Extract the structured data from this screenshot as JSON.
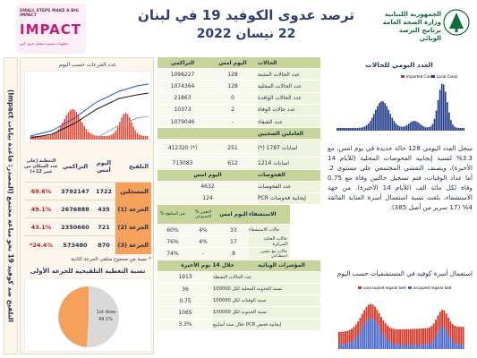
{
  "header": {
    "title": "ترصد عدوى الكوفيد 19 في لبنان",
    "date": "22 نيسان 2022",
    "moph_name": "الجمهورية اللبنانية\nوزارة الصحة العامة\nبرنامج الترصد الوبائي",
    "impact_line1": "SMALL STEPS MAKE A BIG IMPACT",
    "impact_line2": "IMPACT",
    "impact_line3": "خطوات صغيرة بتعمل فرق كبير"
  },
  "side_band": "التلقيح ضد كوفيد 19 نحو مناعة مجتمع (المصدر: قاعدة بيانات Impact)",
  "vaccination": {
    "chart_caption": "عدد الجرعات حسب اليوم",
    "headers": [
      "التلقيح",
      "اليوم أمس",
      "التراكمي",
      "التغطية (على عدد السكان من عمر 12+)"
    ],
    "rows": [
      {
        "label": "المسجلين",
        "yesterday": "1722",
        "cumulative": "3792147",
        "coverage": "69.6%"
      },
      {
        "label": "الجرعة (1)",
        "yesterday": "435",
        "cumulative": "2676888",
        "coverage": "49.1%"
      },
      {
        "label": "الجرعة (2)",
        "yesterday": "721",
        "cumulative": "2350660",
        "coverage": "43.1%"
      },
      {
        "label": "الجرعة (3)",
        "yesterday": "870",
        "cumulative": "573480",
        "coverage": "24.4%*"
      }
    ],
    "note": "* نسبة من مجموع متلقي الجرعة الثانية",
    "coverage_title": "نسبة التغطية التلقيحية للجرعة الأولى",
    "pie_label_1": "1st dose",
    "pie_value_1": "49.1%"
  },
  "cases_table": {
    "header": {
      "label": "الحالات",
      "yesterday": "اليوم امس",
      "cumulative": "التراكمي"
    },
    "rows": [
      {
        "label": "عدد الحالات المثبتة",
        "yesterday": "128",
        "cumulative": "1096227"
      },
      {
        "label": "عدد الحالات المحلية",
        "yesterday": "128",
        "cumulative": "1074364"
      },
      {
        "label": "عدد الحالات الوافدة",
        "yesterday": "0",
        "cumulative": "21863"
      },
      {
        "label": "عدد حالات الوفاة",
        "yesterday": "2",
        "cumulative": "10373"
      },
      {
        "label": "عدد الشفاء",
        "yesterday": "-",
        "cumulative": "1079046"
      }
    ],
    "health_workers_header": "العاملين الصحيين",
    "health_rows": [
      {
        "label": "اصابات 1787 (*)",
        "yesterday": "251",
        "cumulative": "412320 (*)"
      },
      {
        "label": "اصابات 1214",
        "yesterday": "612",
        "cumulative": "713083"
      }
    ],
    "tests_header": {
      "label": "الفحوصات",
      "yesterday": "اليوم امس"
    },
    "tests_rows": [
      {
        "label": "عدد الفحوصات",
        "value": "4632"
      },
      {
        "label": "إيجابية فحوصات PCR",
        "value": "124"
      }
    ],
    "hosp_header": {
      "label": "الاستشفاء",
      "yesterday": "اليوم امس",
      "change": "% التغيير الاسبوعي",
      "vent": "% غير المتلقح"
    },
    "hosp_rows": [
      {
        "label": "حالات الاستشفاء",
        "yesterday": "33",
        "change": "4%",
        "vent": "60%"
      },
      {
        "label": "حالات العناية المركزة",
        "yesterday": "17",
        "change": "4%",
        "vent": "76%"
      },
      {
        "label": "حالات مع تنفس اصطناعي",
        "yesterday": "8",
        "change": "-",
        "vent": "74%"
      }
    ],
    "indicators_header": {
      "label": "المؤشرات الوبائية",
      "value": "خلال 14 يوم الأخيرة"
    },
    "indicator_rows": [
      {
        "label": "عدد الحالات النشطة",
        "value": "1913"
      },
      {
        "label": "نسبة الحدوث المحلية لكل 100000",
        "value": "36"
      },
      {
        "label": "نسبة الوفيات لكل 100000",
        "value": "0.75"
      },
      {
        "label": "نسبة الحدوث لكل 100000",
        "value": "1065"
      },
      {
        "label": "إيجابية فحص PCR خلال ستة أسابيع",
        "value": "3.3%"
      }
    ]
  },
  "daily_cases": {
    "title": "العدد اليومي للحالات",
    "legend_imported": "Imported Cases",
    "legend_local": "Local Cases"
  },
  "summary_text": "سجل العدد اليومي 128 حالة جديدة في يوم امس، مع 3.3% لنسبة إيجابية الفحوصات المحلية (للأيام 14 الأخيرة)، ويصنف التفشي المجتمعي على مستوى 2. أما عداد الوفيات، فتم تسجيل حالتين وفاة مع 0.75 وفاة لكل مائة الف (للأيام 14 الأخيرة). من جهة الاستشفاء، بلغت نسبة استعمال أسرة العناية الفائقة 4% (17 سرير من أصل 385).",
  "beds": {
    "text": "استعمال أسرة كوفيد في المستشفيات حسب اليوم",
    "legend_unoccupied": "unoccupied regular bed",
    "legend_occupied": "occupied regular bed"
  },
  "colors": {
    "accent": "#2f3f6e",
    "table_header": "#c5d59a",
    "orange": "#f6a15b",
    "red": "#b32121",
    "bar_blue": "#4a68c9",
    "bar_red": "#d33a2c"
  }
}
